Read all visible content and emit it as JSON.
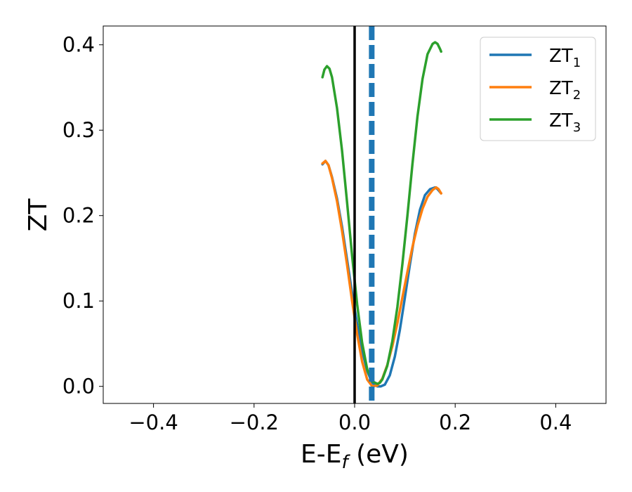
{
  "chart_data": {
    "type": "line",
    "xlabel": "E-E",
    "xlabel_sub": "f",
    "xlabel_unit": " (eV)",
    "ylabel": "ZT",
    "xlim": [
      -0.5,
      0.5
    ],
    "ylim": [
      -0.02,
      0.422
    ],
    "xticks": [
      {
        "value": -0.4,
        "label": "−0.4"
      },
      {
        "value": -0.2,
        "label": "−0.2"
      },
      {
        "value": 0.0,
        "label": "0.0"
      },
      {
        "value": 0.2,
        "label": "0.2"
      },
      {
        "value": 0.4,
        "label": "0.4"
      }
    ],
    "yticks": [
      {
        "value": 0.0,
        "label": "0.0"
      },
      {
        "value": 0.1,
        "label": "0.1"
      },
      {
        "value": 0.2,
        "label": "0.2"
      },
      {
        "value": 0.3,
        "label": "0.3"
      },
      {
        "value": 0.4,
        "label": "0.4"
      }
    ],
    "grid": false,
    "legend_position": "top-right",
    "vlines": [
      {
        "x": 0.0,
        "color": "#000000",
        "style": "solid"
      },
      {
        "x": 0.034,
        "color": "#1f77b4",
        "style": "dashed"
      }
    ],
    "series": [
      {
        "name": "ZT",
        "sub": "1",
        "color": "#1f77b4",
        "x": [
          -0.064,
          -0.058,
          -0.052,
          -0.045,
          -0.035,
          -0.025,
          -0.015,
          -0.005,
          0.005,
          0.015,
          0.025,
          0.035,
          0.045,
          0.052,
          0.06,
          0.07,
          0.08,
          0.09,
          0.1,
          0.11,
          0.12,
          0.13,
          0.14,
          0.15,
          0.16,
          0.165,
          0.172
        ],
        "y": [
          0.26,
          0.264,
          0.259,
          0.245,
          0.22,
          0.187,
          0.148,
          0.109,
          0.073,
          0.042,
          0.018,
          0.004,
          0.0,
          0.0,
          0.002,
          0.013,
          0.035,
          0.066,
          0.104,
          0.143,
          0.179,
          0.207,
          0.224,
          0.231,
          0.233,
          0.231,
          0.226
        ]
      },
      {
        "name": "ZT",
        "sub": "2",
        "color": "#ff7f0e",
        "x": [
          -0.064,
          -0.058,
          -0.052,
          -0.045,
          -0.035,
          -0.025,
          -0.015,
          -0.005,
          0.005,
          0.015,
          0.025,
          0.035,
          0.045,
          0.055,
          0.065,
          0.075,
          0.085,
          0.095,
          0.105,
          0.115,
          0.125,
          0.135,
          0.145,
          0.155,
          0.162,
          0.167,
          0.172
        ],
        "y": [
          0.261,
          0.264,
          0.259,
          0.244,
          0.217,
          0.182,
          0.142,
          0.1,
          0.061,
          0.029,
          0.008,
          0.0,
          0.001,
          0.009,
          0.025,
          0.047,
          0.074,
          0.104,
          0.134,
          0.163,
          0.188,
          0.208,
          0.222,
          0.23,
          0.233,
          0.231,
          0.226
        ]
      },
      {
        "name": "ZT",
        "sub": "3",
        "color": "#2ca02c",
        "x": [
          -0.064,
          -0.06,
          -0.055,
          -0.05,
          -0.045,
          -0.035,
          -0.025,
          -0.015,
          -0.005,
          0.005,
          0.015,
          0.025,
          0.035,
          0.045,
          0.05,
          0.055,
          0.065,
          0.075,
          0.085,
          0.095,
          0.105,
          0.115,
          0.125,
          0.135,
          0.145,
          0.155,
          0.16,
          0.165,
          0.17,
          0.172
        ],
        "y": [
          0.362,
          0.371,
          0.375,
          0.372,
          0.362,
          0.326,
          0.276,
          0.215,
          0.153,
          0.096,
          0.051,
          0.02,
          0.006,
          0.003,
          0.004,
          0.008,
          0.024,
          0.053,
          0.093,
          0.143,
          0.2,
          0.26,
          0.316,
          0.36,
          0.389,
          0.401,
          0.403,
          0.401,
          0.395,
          0.392
        ]
      }
    ]
  }
}
